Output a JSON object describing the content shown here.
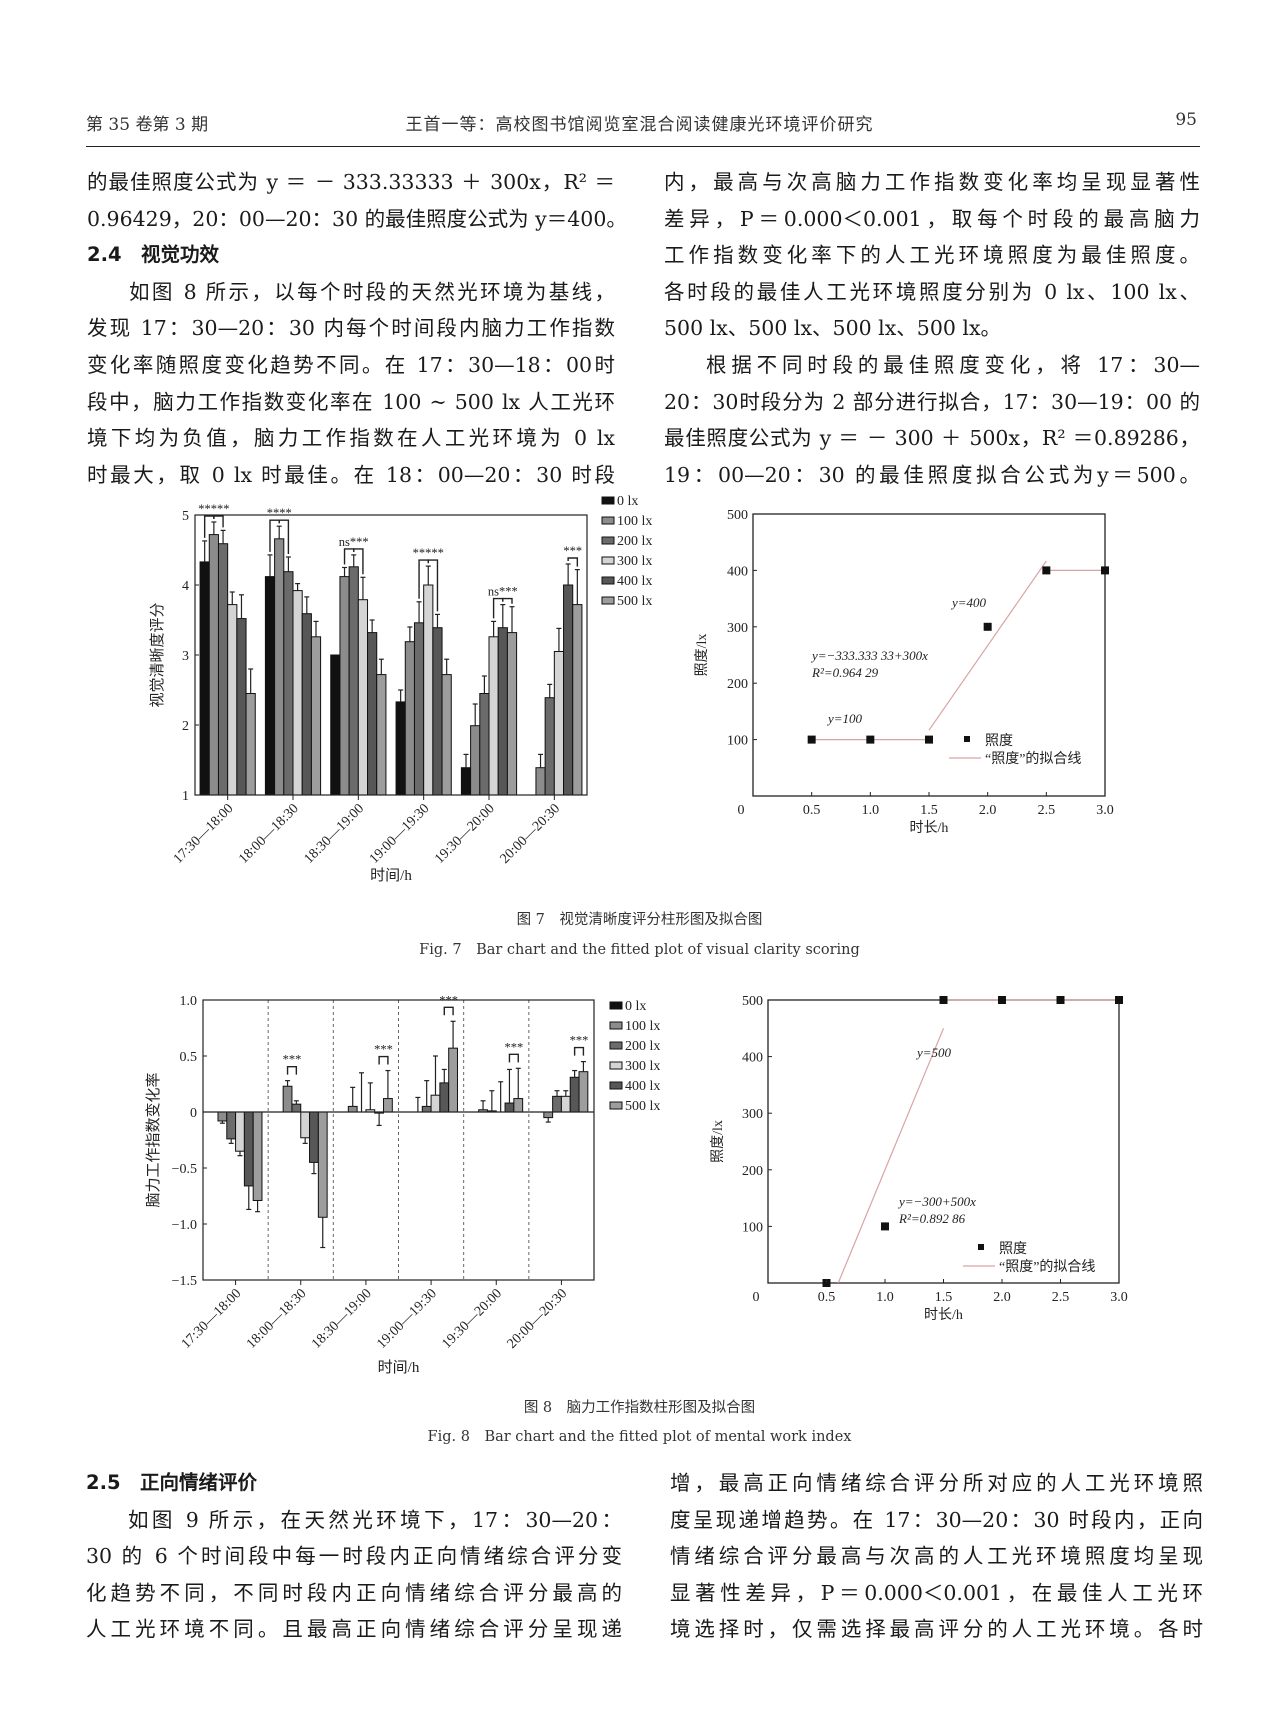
{
  "header": {
    "issue": "第 35 卷第 3 期",
    "running_title": "王首一等：高校图书馆阅览室混合阅读健康光环境评价研究",
    "page_number": "95"
  },
  "top": {
    "left": [
      {
        "text": "的最佳照度公式为 y ＝ － 333.33333 ＋ 300x，R² ＝"
      },
      {
        "text": "0.96429，20：00—20：30 的最佳照度公式为 y＝400。"
      },
      {
        "text": "2.4　视觉功效",
        "kind": "head"
      },
      {
        "text": "如图 8 所示，以每个时段的天然光环境为基线，",
        "kind": "indent"
      },
      {
        "text": "发现 17：30—20：30 内每个时间段内脑力工作指数"
      },
      {
        "text": "变化率随照度变化趋势不同。在 17：30—18：00时"
      },
      {
        "text": "段中，脑力工作指数变化率在 100 ~ 500 lx 人工光环"
      },
      {
        "text": "境下均为负值，脑力工作指数在人工光环境为 0 lx"
      },
      {
        "text": "时最大，取 0 lx 时最佳。在 18：00—20：30 时段"
      }
    ],
    "right": [
      {
        "text": "内，最高与次高脑力工作指数变化率均呈现显著性"
      },
      {
        "text": "差异，P＝0.000＜0.001，取每个时段的最高脑力"
      },
      {
        "text": "工作指数变化率下的人工光环境照度为最佳照度。"
      },
      {
        "text": "各时段的最佳人工光环境照度分别为 0 lx、100 lx、"
      },
      {
        "text": "500 lx、500 lx、500 lx、500 lx。",
        "kind": "short"
      },
      {
        "text": "根据不同时段的最佳照度变化，将 17：30—",
        "kind": "indent"
      },
      {
        "text": "20：30时段分为 2 部分进行拟合，17：30—19：00 的"
      },
      {
        "text": "最佳照度公式为 y ＝ － 300 ＋ 500x，R² ＝0.89286，"
      },
      {
        "text": "19：00—20：30 的最佳照度拟合公式为y＝500。"
      }
    ]
  },
  "bottom": {
    "left": [
      {
        "text": "2.5　正向情绪评价",
        "kind": "head"
      },
      {
        "text": "如图 9 所示，在天然光环境下，17：30—20：",
        "kind": "indent"
      },
      {
        "text": "30 的 6 个时间段中每一时段内正向情绪综合评分变"
      },
      {
        "text": "化趋势不同，不同时段内正向情绪综合评分最高的"
      },
      {
        "text": "人工光环境不同。且最高正向情绪综合评分呈现递"
      }
    ],
    "right": [
      {
        "text": "增，最高正向情绪综合评分所对应的人工光环境照"
      },
      {
        "text": "度呈现递增趋势。在 17：30—20：30 时段内，正向"
      },
      {
        "text": "情绪综合评分最高与次高的人工光环境照度均呈现"
      },
      {
        "text": "显著性差异，P＝0.000＜0.001，在最佳人工光环"
      },
      {
        "text": "境选择时，仅需选择最高评分的人工光环境。各时"
      }
    ]
  },
  "captions": {
    "fig7_cn": "图 7　视觉清晰度评分柱形图及拟合图",
    "fig7_en": "Fig. 7　Bar chart and the fitted plot of visual clarity scoring",
    "fig8_cn": "图 8　脑力工作指数柱形图及拟合图",
    "fig8_en": "Fig. 8　Bar chart and the fitted plot of mental work index"
  },
  "chart_data": [
    {
      "id": "fig7_bar",
      "type": "bar",
      "xlabel": "时间/h",
      "ylabel": "视觉清晰度评分",
      "ylim": [
        1,
        5
      ],
      "yticks": [
        1,
        2,
        3,
        4,
        5
      ],
      "categories": [
        "17:30—18:00",
        "18:00—18:30",
        "18:30—19:00",
        "19:00—19:30",
        "19:30—20:00",
        "20:00—20:30"
      ],
      "legend_position": "right",
      "series": [
        {
          "name": "0 lx",
          "color": "#111111",
          "values": [
            4.33,
            4.12,
            3.0,
            2.33,
            1.39,
            null
          ],
          "errors": [
            0.3,
            0.31,
            0,
            0.17,
            0.19,
            null
          ]
        },
        {
          "name": "100 lx",
          "color": "#8c8c8c",
          "values": [
            4.72,
            4.66,
            4.12,
            3.19,
            1.99,
            1.39
          ],
          "errors": [
            0.18,
            0.18,
            0.13,
            0.21,
            0.31,
            0.19
          ]
        },
        {
          "name": "200 lx",
          "color": "#6b6b6b",
          "values": [
            4.59,
            4.19,
            4.26,
            3.46,
            2.45,
            2.39
          ],
          "errors": [
            0.19,
            0.21,
            0.17,
            0.3,
            0.25,
            0.19
          ]
        },
        {
          "name": "300 lx",
          "color": "#d4d4d4",
          "values": [
            3.72,
            3.92,
            3.79,
            4.0,
            3.26,
            3.05
          ],
          "errors": [
            0.18,
            0.1,
            0.32,
            0.27,
            0.22,
            0.33
          ]
        },
        {
          "name": "400 lx",
          "color": "#575757",
          "values": [
            3.52,
            3.59,
            3.32,
            3.39,
            3.39,
            4.0
          ],
          "errors": [
            0.34,
            0.24,
            0.18,
            0.19,
            0.33,
            0.3
          ]
        },
        {
          "name": "500 lx",
          "color": "#9d9d9d",
          "values": [
            2.45,
            3.26,
            2.72,
            2.72,
            3.32,
            3.72
          ],
          "errors": [
            0.35,
            0.22,
            0.22,
            0.22,
            0.37,
            0.5
          ]
        }
      ],
      "significance": [
        {
          "category": 0,
          "label": "*****",
          "pairs": [
            [
              0,
              1
            ],
            [
              1,
              2
            ]
          ]
        },
        {
          "category": 1,
          "label": "****",
          "pairs": [
            [
              0,
              1
            ],
            [
              1,
              2
            ]
          ]
        },
        {
          "category": 2,
          "label": "ns***",
          "pairs": [
            [
              1,
              2
            ],
            [
              2,
              3
            ]
          ]
        },
        {
          "category": 3,
          "label": "*****",
          "pairs": [
            [
              2,
              3
            ],
            [
              3,
              4
            ]
          ]
        },
        {
          "category": 4,
          "label": "ns***",
          "pairs": [
            [
              3,
              4
            ],
            [
              4,
              5
            ]
          ]
        },
        {
          "category": 5,
          "label": "***",
          "pairs": [
            [
              4,
              5
            ]
          ]
        }
      ]
    },
    {
      "id": "fig7_fit",
      "type": "scatter",
      "xlabel": "时长/h",
      "ylabel": "照度/lx",
      "xlim": [
        0,
        3
      ],
      "ylim": [
        0,
        500
      ],
      "xticks": [
        "0",
        "0.5",
        "1.0",
        "1.5",
        "2.0",
        "2.5",
        "3.0"
      ],
      "yticks": [
        "100",
        "200",
        "300",
        "400",
        "500"
      ],
      "points": [
        [
          0.5,
          100
        ],
        [
          1.0,
          100
        ],
        [
          1.5,
          100
        ],
        [
          2.0,
          300
        ],
        [
          2.5,
          400
        ],
        [
          3.0,
          400
        ]
      ],
      "fits": [
        {
          "intercept": 100,
          "slope": 0,
          "x_range": [
            0.5,
            1.5
          ]
        },
        {
          "intercept": -333.33333,
          "slope": 300,
          "x_range": [
            1.5,
            2.5
          ]
        },
        {
          "intercept": 400,
          "slope": 0,
          "x_range": [
            2.5,
            3.0
          ]
        }
      ],
      "annotations": [
        "y=100",
        "y=−333.333 33+300x",
        "R²=0.964 29",
        "y=400"
      ],
      "legend": {
        "points": "照度",
        "line": "“照度”的拟合线",
        "position": "bottom-right"
      },
      "fit_color": "#d9a3a3"
    },
    {
      "id": "fig8_bar",
      "type": "bar",
      "xlabel": "时间/h",
      "ylabel": "脑力工作指数变化率",
      "ylim": [
        -1.5,
        1.0
      ],
      "yticks": [
        "−1.5",
        "−1.0",
        "−0.5",
        "0",
        "0.5",
        "1.0"
      ],
      "ytick_values": [
        -1.5,
        -1.0,
        -0.5,
        0,
        0.5,
        1.0
      ],
      "categories": [
        "17:30—18:00",
        "18:00—18:30",
        "18:30—19:00",
        "19:00—19:30",
        "19:30—20:00",
        "20:00—20:30"
      ],
      "legend_position": "right",
      "series": [
        {
          "name": "0 lx",
          "color": "#111111",
          "values": [
            0,
            0,
            0,
            0,
            0,
            0
          ],
          "errors": [
            0,
            0,
            0,
            0,
            0,
            0
          ]
        },
        {
          "name": "100 lx",
          "color": "#8c8c8c",
          "values": [
            -0.08,
            0.23,
            0.05,
            0.0,
            0.02,
            -0.05
          ],
          "errors": [
            0.02,
            0.05,
            0.17,
            0.13,
            0.08,
            0.04
          ]
        },
        {
          "name": "200 lx",
          "color": "#6b6b6b",
          "values": [
            -0.24,
            0.07,
            0.0,
            0.05,
            0.01,
            0.14
          ],
          "errors": [
            0.04,
            0.03,
            0.35,
            0.23,
            0.18,
            0.05
          ]
        },
        {
          "name": "300 lx",
          "color": "#d4d4d4",
          "values": [
            -0.35,
            -0.23,
            0.02,
            0.15,
            0.0,
            0.14
          ],
          "errors": [
            0.04,
            0.05,
            0.24,
            0.35,
            0.27,
            0.05
          ]
        },
        {
          "name": "400 lx",
          "color": "#575757",
          "values": [
            -0.66,
            -0.45,
            -0.01,
            0.26,
            0.08,
            0.31
          ],
          "errors": [
            0.21,
            0.1,
            0.11,
            0.12,
            0.3,
            0.06
          ]
        },
        {
          "name": "500 lx",
          "color": "#9d9d9d",
          "values": [
            -0.79,
            -0.94,
            0.12,
            0.57,
            0.12,
            0.36
          ],
          "errors": [
            0.1,
            0.27,
            0.25,
            0.24,
            0.27,
            0.09
          ]
        }
      ],
      "significance": [
        {
          "category": 1,
          "label": "***",
          "pairs": [
            [
              1,
              2
            ]
          ]
        },
        {
          "category": 2,
          "label": "***",
          "pairs": [
            [
              4,
              5
            ]
          ]
        },
        {
          "category": 3,
          "label": "***",
          "pairs": [
            [
              4,
              5
            ]
          ]
        },
        {
          "category": 4,
          "label": "***",
          "pairs": [
            [
              4,
              5
            ]
          ]
        },
        {
          "category": 5,
          "label": "***",
          "pairs": [
            [
              4,
              5
            ]
          ]
        }
      ]
    },
    {
      "id": "fig8_fit",
      "type": "scatter",
      "xlabel": "时长/h",
      "ylabel": "照度/lx",
      "xlim": [
        0,
        3
      ],
      "ylim": [
        0,
        500
      ],
      "xticks": [
        "0",
        "0.5",
        "1.0",
        "1.5",
        "2.0",
        "2.5",
        "3.0"
      ],
      "yticks": [
        "100",
        "200",
        "300",
        "400",
        "500"
      ],
      "points": [
        [
          0.5,
          0
        ],
        [
          1.0,
          100
        ],
        [
          1.5,
          500
        ],
        [
          2.0,
          500
        ],
        [
          2.5,
          500
        ],
        [
          3.0,
          500
        ]
      ],
      "fits": [
        {
          "intercept": -300,
          "slope": 500,
          "x_range": [
            0.6,
            1.5
          ]
        },
        {
          "intercept": 500,
          "slope": 0,
          "x_range": [
            1.5,
            3.0
          ]
        }
      ],
      "annotations": [
        "y=500",
        "y=−300+500x",
        "R²=0.892 86"
      ],
      "legend": {
        "points": "照度",
        "line": "“照度”的拟合线",
        "position": "bottom-right"
      },
      "fit_color": "#d9a3a3"
    }
  ]
}
